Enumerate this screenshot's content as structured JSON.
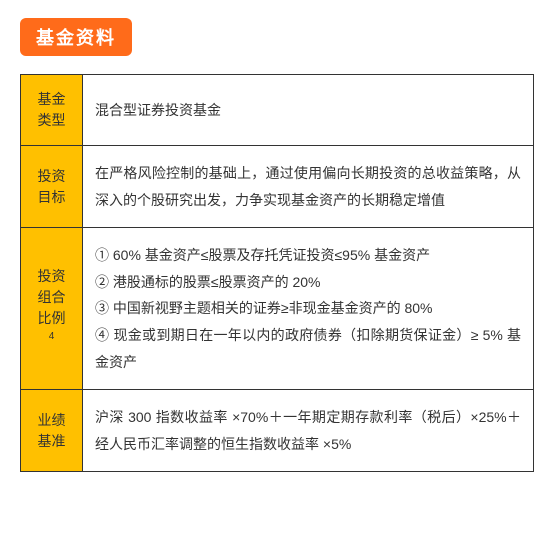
{
  "title": "基金资料",
  "rows": [
    {
      "label_line1": "基金",
      "label_line2": "类型",
      "content": "混合型证券投资基金"
    },
    {
      "label_line1": "投资",
      "label_line2": "目标",
      "content": "在严格风险控制的基础上，通过使用偏向长期投资的总收益策略，从深入的个股研究出发，力争实现基金资产的长期稳定增值"
    },
    {
      "label_line1": "投资",
      "label_line2": "组合",
      "label_line3": "比例",
      "label_sup": "4",
      "content": "① 60% 基金资产≤股票及存托凭证投资≤95% 基金资产\n② 港股通标的股票≤股票资产的 20%\n③ 中国新视野主题相关的证券≥非现金基金资产的 80%\n④ 现金或到期日在一年以内的政府债券（扣除期货保证金）≥ 5% 基金资产"
    },
    {
      "label_line1": "业绩",
      "label_line2": "基准",
      "content": "沪深 300 指数收益率 ×70%＋一年期定期存款利率（税后）×25%＋ 经人民币汇率调整的恒生指数收益率 ×5%"
    }
  ],
  "style": {
    "badge_bg": "#ff6b1a",
    "badge_color": "#ffffff",
    "label_bg": "#ffc000",
    "border_color": "#333333",
    "text_color": "#333333",
    "font_size_title": 18,
    "font_size_body": 14,
    "line_height": 1.9
  }
}
